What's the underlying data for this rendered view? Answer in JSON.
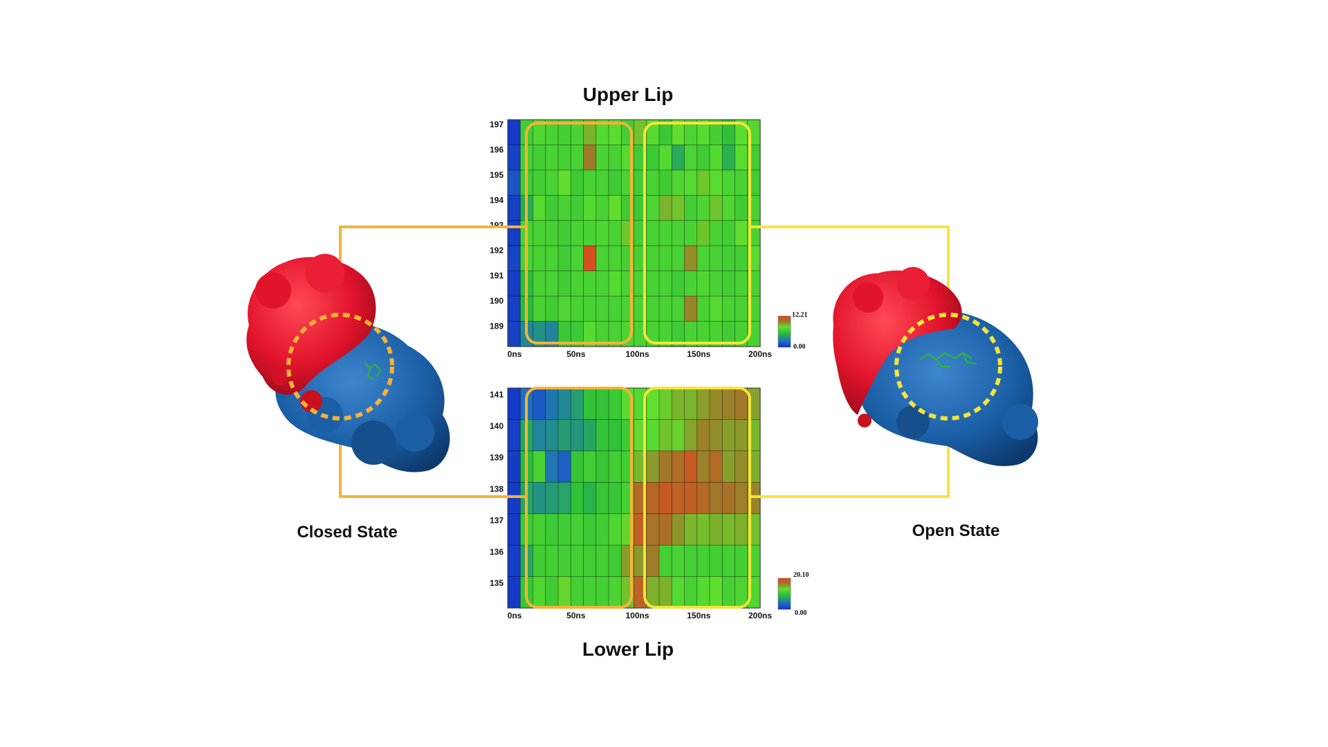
{
  "figure": {
    "colors": {
      "closed_frame": "#F5B335",
      "open_frame": "#F7E43A",
      "protein_red": "#E2142C",
      "protein_blue": "#1B5FA6",
      "ligand_green": "#2DB82D"
    },
    "left_label": "Closed State",
    "right_label": "Open State"
  },
  "chart_data": [
    {
      "type": "heatmap",
      "title": "Upper Lip",
      "x_tick_labels": [
        "0ns",
        "50ns",
        "100ns",
        "150ns",
        "200ns"
      ],
      "x_range": [
        0,
        200
      ],
      "y_tick_labels": [
        "197",
        "196",
        "195",
        "194",
        "193",
        "192",
        "191",
        "190",
        "189"
      ],
      "scale_min_label": "0.00",
      "scale_max_label": "12.21",
      "scale_range": [
        0,
        12.21
      ],
      "colorscale": [
        "#1433C8",
        "#1F6FC0",
        "#2BBE3A",
        "#5FE02E",
        "#A07A2A",
        "#E0461E"
      ],
      "columns": 20,
      "rows_top_to_bottom": [
        [
          0.3,
          5.9,
          6.7,
          6.3,
          6.1,
          6.3,
          8.4,
          6.8,
          7.1,
          6.0,
          8.0,
          7.0,
          5.5,
          7.4,
          6.4,
          7.0,
          6.1,
          5.1,
          7.1,
          6.7
        ],
        [
          0.6,
          6.2,
          6.0,
          6.3,
          6.2,
          6.3,
          9.8,
          6.4,
          6.3,
          6.9,
          5.9,
          5.7,
          6.8,
          4.3,
          6.4,
          5.9,
          6.8,
          4.5,
          7.0,
          5.9
        ],
        [
          1.4,
          5.8,
          6.0,
          6.3,
          7.4,
          5.8,
          6.3,
          6.3,
          5.8,
          6.3,
          5.9,
          6.3,
          5.9,
          6.6,
          6.8,
          7.9,
          7.0,
          6.4,
          6.3,
          5.9
        ],
        [
          0.5,
          4.4,
          6.9,
          5.8,
          6.3,
          5.9,
          6.8,
          6.3,
          7.4,
          5.8,
          5.7,
          6.5,
          8.4,
          8.0,
          6.0,
          6.5,
          8.0,
          6.6,
          5.9,
          6.3
        ],
        [
          0.4,
          6.3,
          6.3,
          6.2,
          5.9,
          6.3,
          6.3,
          6.6,
          6.3,
          7.9,
          6.0,
          6.3,
          6.3,
          6.3,
          6.3,
          7.9,
          6.3,
          6.0,
          7.4,
          6.3
        ],
        [
          0.7,
          6.3,
          6.3,
          6.3,
          5.9,
          6.3,
          11.8,
          6.3,
          6.3,
          6.1,
          6.2,
          6.3,
          6.3,
          6.3,
          9.3,
          6.3,
          6.3,
          6.0,
          6.0,
          7.0
        ],
        [
          0.4,
          4.9,
          6.3,
          6.3,
          5.9,
          6.3,
          6.3,
          6.3,
          6.8,
          6.3,
          6.3,
          6.3,
          6.3,
          5.8,
          6.3,
          6.6,
          6.3,
          6.0,
          6.3,
          6.3
        ],
        [
          0.5,
          4.8,
          6.3,
          5.9,
          6.6,
          6.3,
          6.3,
          6.3,
          6.3,
          6.3,
          6.3,
          6.3,
          6.3,
          6.3,
          9.5,
          6.3,
          6.9,
          6.3,
          6.3,
          6.3
        ],
        [
          0.6,
          3.2,
          3.5,
          3.1,
          5.6,
          5.6,
          7.0,
          6.3,
          6.3,
          6.5,
          6.3,
          6.3,
          6.3,
          5.8,
          6.3,
          6.3,
          6.3,
          5.9,
          6.2,
          6.3
        ]
      ]
    },
    {
      "type": "heatmap",
      "title": "Lower Lip",
      "x_tick_labels": [
        "0ns",
        "50ns",
        "100ns",
        "150ns",
        "200ns"
      ],
      "x_range": [
        0,
        200
      ],
      "y_tick_labels": [
        "141",
        "140",
        "139",
        "138",
        "137",
        "136",
        "135"
      ],
      "scale_min_label": "0.00",
      "scale_max_label": "20.10",
      "scale_range": [
        0,
        20.1
      ],
      "colorscale": [
        "#1433C8",
        "#1F6FC0",
        "#2BBE3A",
        "#5FE02E",
        "#A07A2A",
        "#E0461E"
      ],
      "columns": 20,
      "rows_top_to_bottom": [
        [
          0.5,
          4.0,
          2.6,
          4.4,
          5.3,
          6.4,
          8.5,
          8.6,
          9.3,
          11.6,
          11.2,
          12.1,
          12.8,
          13.7,
          13.7,
          14.7,
          15.4,
          15.8,
          16.1,
          14.5
        ],
        [
          0.8,
          6.8,
          5.1,
          5.5,
          6.3,
          6.0,
          6.8,
          8.8,
          8.5,
          9.5,
          12.3,
          11.4,
          13.2,
          12.7,
          14.4,
          15.8,
          15.3,
          14.6,
          14.9,
          13.6
        ],
        [
          0.6,
          7.9,
          10.3,
          4.4,
          3.0,
          8.9,
          9.8,
          8.9,
          9.9,
          9.8,
          13.6,
          14.8,
          16.2,
          17.0,
          18.5,
          15.8,
          17.2,
          14.6,
          15.4,
          14.0
        ],
        [
          0.6,
          6.8,
          5.8,
          6.3,
          6.7,
          8.5,
          7.5,
          8.9,
          9.0,
          10.0,
          17.2,
          17.6,
          18.6,
          18.0,
          18.1,
          17.4,
          16.2,
          16.6,
          15.9,
          15.7
        ],
        [
          0.5,
          9.5,
          10.2,
          9.4,
          9.7,
          10.1,
          9.3,
          9.8,
          10.8,
          12.4,
          18.2,
          16.5,
          16.9,
          15.0,
          13.7,
          13.4,
          13.9,
          13.6,
          13.9,
          13.3
        ],
        [
          0.7,
          6.8,
          9.8,
          10.0,
          10.0,
          10.0,
          9.8,
          10.0,
          9.6,
          14.8,
          14.9,
          16.0,
          10.0,
          10.4,
          10.0,
          10.0,
          10.0,
          10.0,
          10.0,
          10.4
        ],
        [
          0.4,
          9.0,
          10.9,
          9.6,
          12.5,
          10.0,
          10.2,
          10.0,
          10.7,
          13.3,
          17.7,
          13.9,
          13.9,
          11.2,
          10.3,
          11.2,
          12.0,
          10.2,
          10.7,
          11.0
        ]
      ]
    }
  ]
}
